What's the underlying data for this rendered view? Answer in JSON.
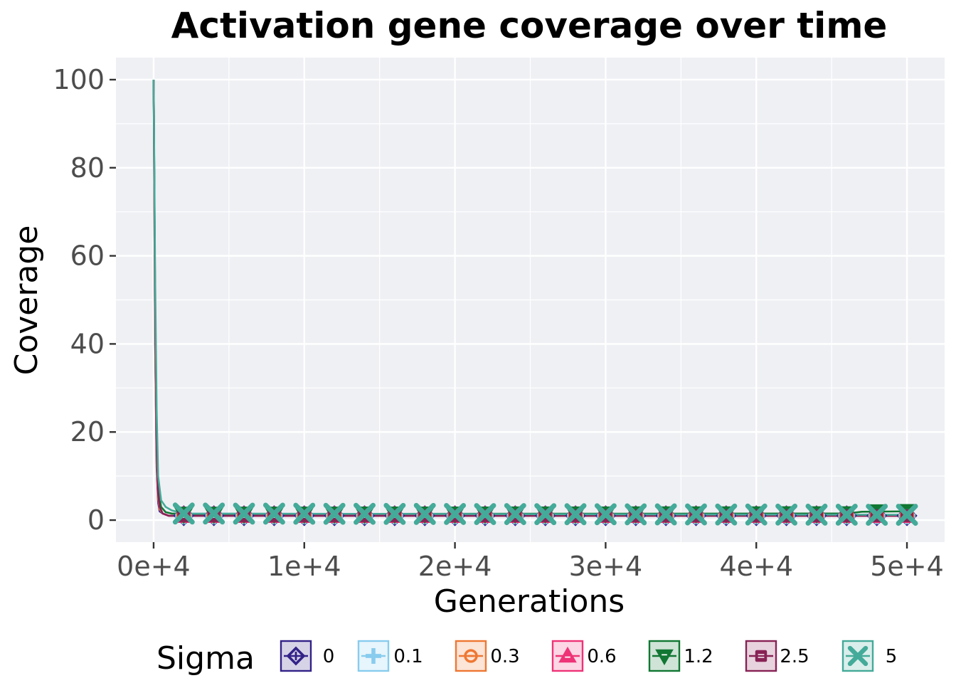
{
  "chart_data": {
    "type": "line",
    "title": "Activation gene coverage over time",
    "xlabel": "Generations",
    "ylabel": "Coverage",
    "xlim": [
      -2500,
      52500
    ],
    "ylim": [
      -5,
      105
    ],
    "x_ticks": [
      0,
      10000,
      20000,
      30000,
      40000,
      50000
    ],
    "x_tick_labels": [
      "0e+4",
      "1e+4",
      "2e+4",
      "3e+4",
      "4e+4",
      "5e+4"
    ],
    "y_ticks": [
      0,
      20,
      40,
      60,
      80,
      100
    ],
    "y_tick_labels": [
      "0",
      "20",
      "40",
      "60",
      "80",
      "100"
    ],
    "grid": true,
    "legend": {
      "title": "Sigma",
      "placement": "bottom"
    },
    "marker_x": [
      2000,
      4000,
      6000,
      8000,
      10000,
      12000,
      14000,
      16000,
      18000,
      20000,
      22000,
      24000,
      26000,
      28000,
      30000,
      32000,
      34000,
      36000,
      38000,
      40000,
      42000,
      44000,
      46000,
      48000,
      50000
    ],
    "series": [
      {
        "name": "0",
        "color": "#332288",
        "marker": "diamond",
        "x": [
          0,
          100,
          200,
          300,
          400,
          600,
          1000,
          2000,
          50000
        ],
        "y": [
          100,
          40,
          12,
          4,
          2,
          1.5,
          1,
          1,
          1
        ]
      },
      {
        "name": "0.1",
        "color": "#88CCEE",
        "marker": "plus",
        "x": [
          0,
          100,
          200,
          300,
          400,
          600,
          1000,
          2000,
          50000
        ],
        "y": [
          100,
          42,
          14,
          5,
          2.5,
          1.5,
          1,
          1,
          1
        ]
      },
      {
        "name": "0.3",
        "color": "#EE7733",
        "marker": "circle",
        "x": [
          0,
          100,
          200,
          300,
          400,
          600,
          1000,
          2000,
          50000
        ],
        "y": [
          100,
          40,
          13,
          5,
          2.5,
          1.5,
          1,
          1,
          1
        ]
      },
      {
        "name": "0.6",
        "color": "#EE3377",
        "marker": "triangle-up",
        "x": [
          0,
          100,
          200,
          300,
          400,
          600,
          1000,
          2000,
          50000
        ],
        "y": [
          100,
          45,
          15,
          6,
          3,
          1.5,
          1,
          1,
          1
        ]
      },
      {
        "name": "1.2",
        "color": "#117733",
        "marker": "triangle-down",
        "x": [
          0,
          100,
          200,
          300,
          500,
          800,
          1200,
          2000,
          46000,
          47000,
          50000
        ],
        "y": [
          100,
          50,
          18,
          7,
          3,
          1.8,
          1.5,
          1.4,
          1.5,
          1.9,
          2
        ]
      },
      {
        "name": "2.5",
        "color": "#882255",
        "marker": "square",
        "x": [
          0,
          100,
          200,
          300,
          400,
          600,
          1000,
          2000,
          50000
        ],
        "y": [
          100,
          48,
          16,
          6,
          3,
          1.5,
          1,
          1,
          1
        ]
      },
      {
        "name": "5",
        "color": "#44AA99",
        "marker": "x",
        "x": [
          0,
          100,
          200,
          300,
          500,
          800,
          1200,
          2000,
          50000
        ],
        "y": [
          100,
          55,
          25,
          10,
          4.5,
          3,
          2.2,
          1.5,
          1.2
        ]
      }
    ]
  }
}
